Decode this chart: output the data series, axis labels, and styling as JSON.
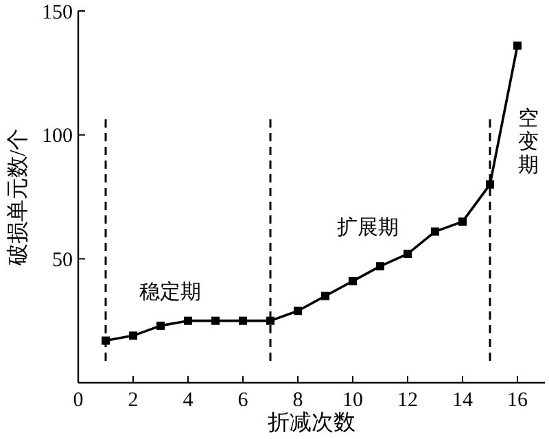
{
  "chart_data": {
    "type": "line",
    "xlabel": "折减次数",
    "ylabel": "破损单元数/个",
    "x": [
      1,
      2,
      3,
      4,
      5,
      6,
      7,
      8,
      9,
      10,
      11,
      12,
      13,
      14,
      15,
      16
    ],
    "series": [
      {
        "color": "#000000",
        "values": [
          17,
          19,
          23,
          25,
          25,
          25,
          25,
          29,
          35,
          41,
          47,
          52,
          61,
          65,
          80,
          136
        ]
      }
    ],
    "xlim": [
      0,
      17
    ],
    "xticks": [
      0,
      2,
      4,
      6,
      8,
      10,
      12,
      14,
      16
    ],
    "ylim": [
      0,
      150
    ],
    "yticks": [
      50,
      100,
      150
    ],
    "marker": "square",
    "grid": false,
    "ref_lines": [
      {
        "axis": "x",
        "value": 1,
        "line_style": "dashed",
        "color": "#000000"
      },
      {
        "axis": "x",
        "value": 7,
        "line_style": "dashed",
        "color": "#000000"
      },
      {
        "axis": "x",
        "value": 15,
        "line_style": "dashed",
        "color": "#000000"
      }
    ],
    "annotations": [
      "稳定期",
      "扩展期",
      "空变期"
    ]
  }
}
